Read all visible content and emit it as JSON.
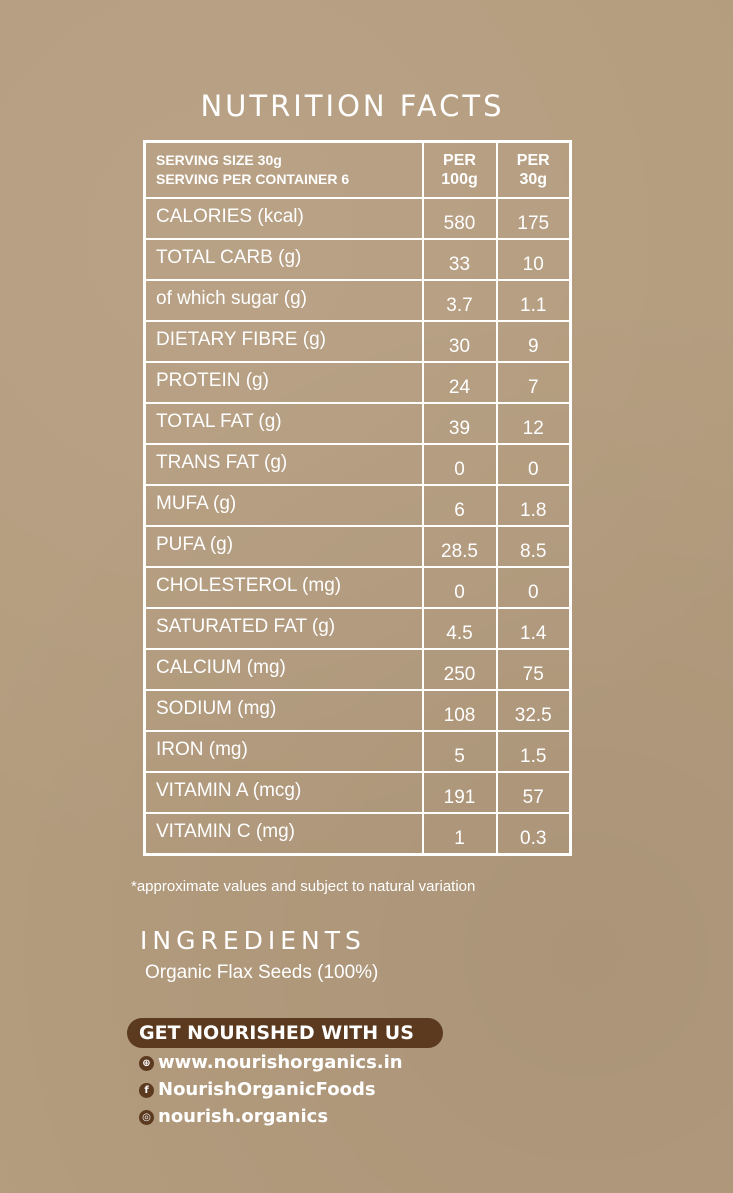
{
  "title": "NUTRITION FACTS",
  "header": {
    "serving_size": "SERVING SIZE 30g",
    "servings": "SERVING PER CONTAINER 6",
    "col1": [
      "PER",
      "100g"
    ],
    "col2": [
      "PER",
      "30g"
    ]
  },
  "rows": [
    {
      "label": "CALORIES (kcal)",
      "per100": "580",
      "per30": "175"
    },
    {
      "label": "TOTAL CARB (g)",
      "per100": "33",
      "per30": "10"
    },
    {
      "label": "of which sugar (g)",
      "per100": "3.7",
      "per30": "1.1"
    },
    {
      "label": "DIETARY FIBRE (g)",
      "per100": "30",
      "per30": "9"
    },
    {
      "label": "PROTEIN (g)",
      "per100": "24",
      "per30": "7"
    },
    {
      "label": "TOTAL FAT (g)",
      "per100": "39",
      "per30": "12"
    },
    {
      "label": "TRANS FAT (g)",
      "per100": "0",
      "per30": "0"
    },
    {
      "label": "MUFA (g)",
      "per100": "6",
      "per30": "1.8"
    },
    {
      "label": "PUFA (g)",
      "per100": "28.5",
      "per30": "8.5"
    },
    {
      "label": "CHOLESTEROL (mg)",
      "per100": "0",
      "per30": "0"
    },
    {
      "label": "SATURATED FAT (g)",
      "per100": "4.5",
      "per30": "1.4"
    },
    {
      "label": "CALCIUM (mg)",
      "per100": "250",
      "per30": "75"
    },
    {
      "label": "SODIUM (mg)",
      "per100": "108",
      "per30": "32.5"
    },
    {
      "label": "IRON (mg)",
      "per100": "5",
      "per30": "1.5"
    },
    {
      "label": "VITAMIN A (mcg)",
      "per100": "191",
      "per30": "57"
    },
    {
      "label": "VITAMIN C (mg)",
      "per100": "1",
      "per30": "0.3"
    }
  ],
  "note": "*approximate values and subject to natural variation",
  "ingredients": {
    "heading": "INGREDIENTS",
    "text": "Organic Flax Seeds (100%)"
  },
  "contact": {
    "heading": "GET NOURISHED WITH US",
    "links": [
      {
        "icon": "globe-icon",
        "glyph": "⊕",
        "text": "www.nourishorganics.in"
      },
      {
        "icon": "facebook-icon",
        "glyph": "f",
        "text": "NourishOrganicFoods"
      },
      {
        "icon": "instagram-icon",
        "glyph": "◎",
        "text": "nourish.organics"
      }
    ]
  },
  "colors": {
    "background": "#b49c7e",
    "accent": "#5b3a20"
  }
}
